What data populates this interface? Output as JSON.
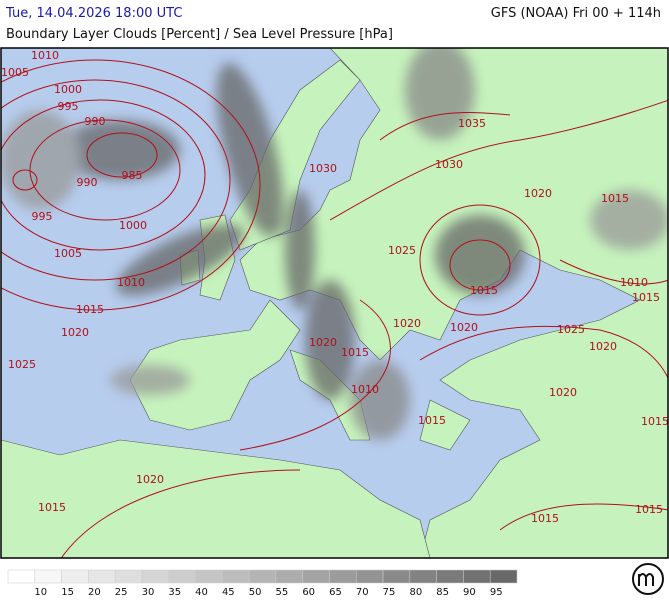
{
  "header": {
    "valid_time": "Tue, 14.04.2026 18:00 UTC",
    "model_run": "GFS (NOAA) Fri 00 + 114h",
    "title": "Boundary Layer Clouds [Percent] / Sea Level Pressure [hPa]"
  },
  "isobar_labels": [
    "1010",
    "1005",
    "1000",
    "995",
    "990",
    "985",
    "990",
    "995",
    "1000",
    "1005",
    "1010",
    "1015",
    "1020",
    "1025",
    "1030",
    "1035",
    "1030",
    "1020",
    "1015",
    "1025",
    "1015",
    "1010",
    "1015",
    "1020",
    "1020",
    "1025",
    "1020",
    "1020",
    "1015",
    "1010",
    "1020",
    "1015",
    "1015",
    "1020",
    "1015",
    "1015",
    "1015"
  ],
  "legend": {
    "labels": [
      10,
      15,
      20,
      25,
      30,
      35,
      40,
      45,
      50,
      55,
      60,
      65,
      70,
      75,
      80,
      85,
      90,
      95
    ]
  }
}
